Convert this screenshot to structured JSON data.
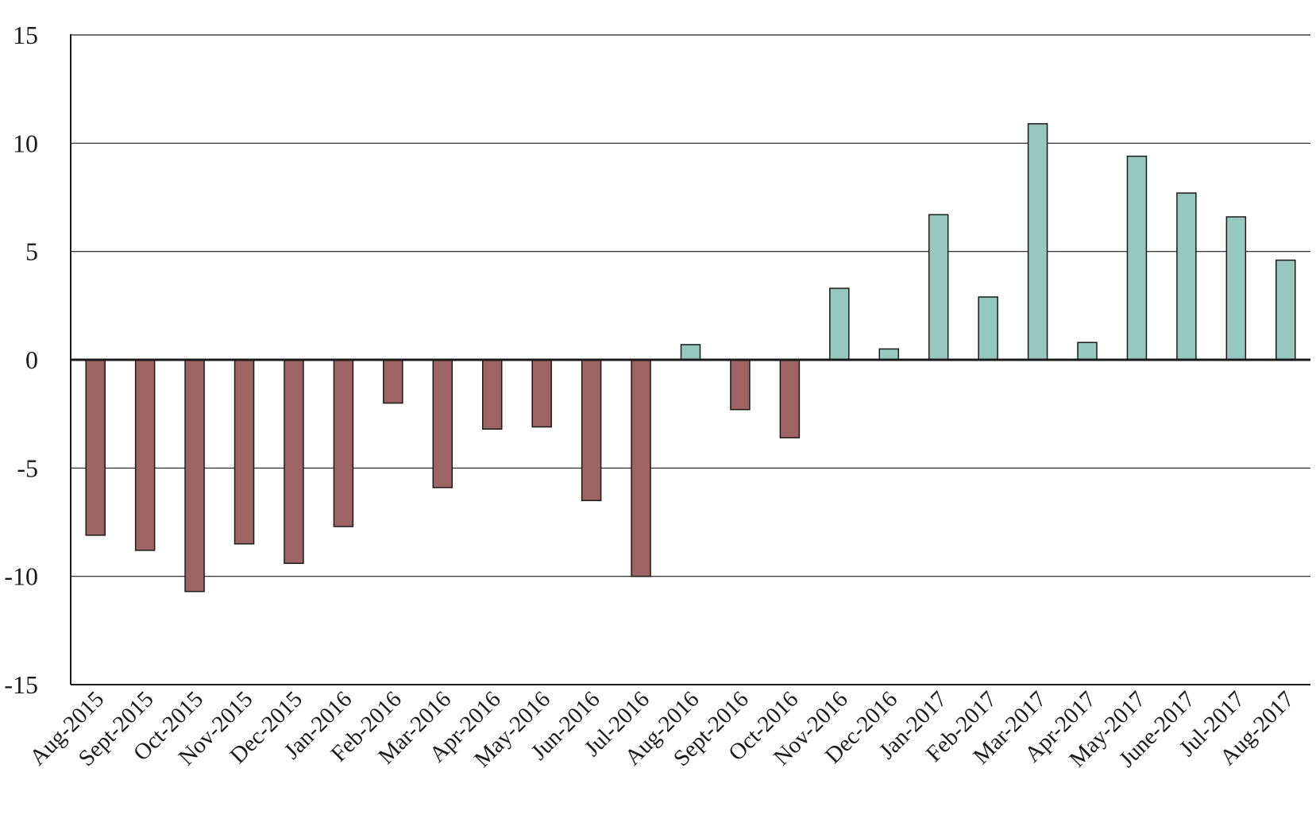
{
  "chart_data": {
    "type": "bar",
    "title": "",
    "xlabel": "",
    "ylabel": "",
    "ylim": [
      -15,
      15
    ],
    "yticks": [
      15,
      10,
      5,
      0,
      -5,
      -10,
      -15
    ],
    "ytick_labels": [
      "15",
      "10",
      "5",
      "0",
      "-5",
      "-10",
      "-15"
    ],
    "grid": true,
    "legend": "none",
    "colors": {
      "negative": "#9E6464",
      "positive": "#96C8BE",
      "outline": "#1a1a1a",
      "grid": "#1a1a1a"
    },
    "categories": [
      "Aug-2015",
      "Sept-2015",
      "Oct-2015",
      "Nov-2015",
      "Dec-2015",
      "Jan-2016",
      "Feb-2016",
      "Mar-2016",
      "Apr-2016",
      "May-2016",
      "Jun-2016",
      "Jul-2016",
      "Aug-2016",
      "Sept-2016",
      "Oct-2016",
      "Nov-2016",
      "Dec-2016",
      "Jan-2017",
      "Feb-2017",
      "Mar-2017",
      "Apr-2017",
      "May-2017",
      "June-2017",
      "Jul-2017",
      "Aug-2017"
    ],
    "values": [
      -8.1,
      -8.8,
      -10.7,
      -8.5,
      -9.4,
      -7.7,
      -2.0,
      -5.9,
      -3.2,
      -3.1,
      -6.5,
      -10.0,
      0.7,
      -2.3,
      -3.6,
      3.3,
      0.5,
      6.7,
      2.9,
      10.9,
      0.8,
      9.4,
      7.7,
      6.6,
      4.6
    ]
  }
}
